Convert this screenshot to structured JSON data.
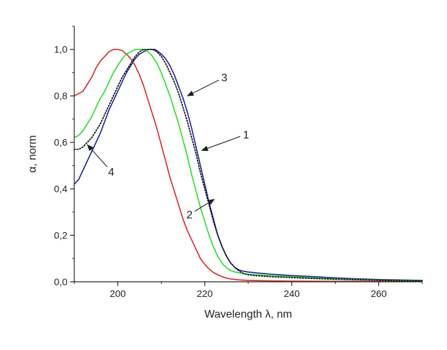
{
  "chart_data": {
    "type": "line",
    "xlabel": "Wavelength λ, nm",
    "ylabel": "α, norm",
    "xlim": [
      190,
      270
    ],
    "ylim": [
      0,
      1.1
    ],
    "x_ticks": [
      200,
      220,
      240,
      260
    ],
    "x_tick_labels": [
      "200",
      "220",
      "240",
      "260"
    ],
    "y_ticks": [
      0,
      0.2,
      0.4,
      0.6,
      0.8,
      1.0
    ],
    "y_tick_labels": [
      "0,0",
      "0,2",
      "0,4",
      "0,6",
      "0,8",
      "1,0"
    ],
    "grid": false,
    "series": [
      {
        "name": "1",
        "color": "#1a1aa6",
        "style": "solid",
        "x": [
          190,
          191,
          192,
          193,
          194,
          195,
          196,
          197,
          198,
          199,
          200,
          201,
          202,
          203,
          204,
          205,
          206,
          207,
          208,
          208.5,
          209,
          210,
          211,
          212,
          213,
          214,
          215,
          216,
          217,
          218,
          219,
          220,
          221,
          222,
          223,
          224,
          225,
          226,
          227,
          228,
          229,
          230,
          232,
          235,
          240,
          245,
          250,
          255,
          260,
          265,
          270
        ],
        "y": [
          0.42,
          0.44,
          0.48,
          0.52,
          0.56,
          0.6,
          0.64,
          0.69,
          0.74,
          0.78,
          0.82,
          0.86,
          0.9,
          0.93,
          0.96,
          0.98,
          0.99,
          1.0,
          1.0,
          1.0,
          0.995,
          0.98,
          0.96,
          0.93,
          0.89,
          0.84,
          0.79,
          0.73,
          0.66,
          0.58,
          0.5,
          0.42,
          0.34,
          0.27,
          0.2,
          0.15,
          0.11,
          0.08,
          0.06,
          0.05,
          0.045,
          0.042,
          0.038,
          0.033,
          0.027,
          0.022,
          0.017,
          0.013,
          0.01,
          0.008,
          0.006
        ]
      },
      {
        "name": "2",
        "color": "#e02020",
        "style": "solid",
        "x": [
          190,
          191,
          192,
          193,
          194,
          195,
          196,
          197,
          198,
          199,
          200,
          201,
          202,
          203,
          204,
          205,
          206,
          207,
          208,
          209,
          210,
          211,
          212,
          213,
          214,
          215,
          216,
          217,
          218,
          219,
          220,
          221,
          222,
          223,
          224,
          225,
          226,
          228,
          230,
          235,
          240,
          250,
          260,
          270
        ],
        "y": [
          0.8,
          0.81,
          0.82,
          0.85,
          0.88,
          0.92,
          0.95,
          0.97,
          0.99,
          1.0,
          1.0,
          0.995,
          0.98,
          0.96,
          0.93,
          0.89,
          0.84,
          0.78,
          0.72,
          0.66,
          0.59,
          0.52,
          0.45,
          0.39,
          0.33,
          0.27,
          0.22,
          0.18,
          0.14,
          0.1,
          0.075,
          0.055,
          0.04,
          0.03,
          0.022,
          0.016,
          0.012,
          0.008,
          0.006,
          0.004,
          0.003,
          0.002,
          0.002,
          0.002
        ]
      },
      {
        "name": "3",
        "color": "#1fe01f",
        "style": "solid",
        "x": [
          190,
          191,
          192,
          193,
          194,
          195,
          196,
          197,
          198,
          199,
          200,
          201,
          202,
          203,
          204,
          205,
          206,
          207,
          208,
          209,
          210,
          211,
          212,
          213,
          214,
          215,
          216,
          217,
          218,
          219,
          220,
          221,
          222,
          223,
          224,
          225,
          226,
          227,
          228,
          229,
          230,
          232,
          235,
          240,
          245,
          250,
          255,
          260,
          265,
          270
        ],
        "y": [
          0.62,
          0.63,
          0.65,
          0.68,
          0.71,
          0.75,
          0.79,
          0.82,
          0.86,
          0.9,
          0.93,
          0.96,
          0.98,
          0.99,
          1.0,
          1.0,
          1.0,
          0.99,
          0.97,
          0.94,
          0.9,
          0.85,
          0.8,
          0.74,
          0.68,
          0.61,
          0.54,
          0.46,
          0.39,
          0.32,
          0.26,
          0.2,
          0.15,
          0.11,
          0.08,
          0.06,
          0.048,
          0.042,
          0.038,
          0.035,
          0.033,
          0.03,
          0.027,
          0.022,
          0.017,
          0.013,
          0.01,
          0.008,
          0.006,
          0.005
        ]
      },
      {
        "name": "4",
        "color": "#111111",
        "style": "dotted",
        "x": [
          190,
          191,
          192,
          193,
          194,
          195,
          196,
          197,
          198,
          199,
          200,
          201,
          202,
          203,
          204,
          205,
          206,
          207,
          208,
          209,
          210,
          211,
          212,
          213,
          214,
          215,
          216,
          217,
          218,
          219,
          220,
          221,
          222,
          223,
          224,
          225,
          226,
          227,
          228,
          229,
          230,
          232,
          235,
          240,
          245,
          250,
          255,
          260,
          265,
          270
        ],
        "y": [
          0.57,
          0.57,
          0.58,
          0.6,
          0.62,
          0.65,
          0.68,
          0.72,
          0.76,
          0.8,
          0.84,
          0.88,
          0.91,
          0.94,
          0.97,
          0.99,
          1.0,
          1.0,
          1.0,
          0.99,
          0.97,
          0.94,
          0.9,
          0.86,
          0.81,
          0.75,
          0.69,
          0.62,
          0.55,
          0.47,
          0.4,
          0.33,
          0.26,
          0.2,
          0.15,
          0.11,
          0.08,
          0.06,
          0.045,
          0.035,
          0.03,
          0.026,
          0.022,
          0.018,
          0.014,
          0.011,
          0.009,
          0.007,
          0.005,
          0.004
        ]
      }
    ],
    "annotations": [
      {
        "text": "1",
        "series": "1",
        "text_x": 229.5,
        "text_y": 0.635,
        "arrow_x": 219.3,
        "arrow_y": 0.565
      },
      {
        "text": "2",
        "series": "2",
        "text_x": 216.5,
        "text_y": 0.29,
        "arrow_x": 222.2,
        "arrow_y": 0.355
      },
      {
        "text": "3",
        "series": "3",
        "text_x": 224.5,
        "text_y": 0.88,
        "arrow_x": 216.0,
        "arrow_y": 0.8
      },
      {
        "text": "4",
        "series": "4",
        "text_x": 198.5,
        "text_y": 0.475,
        "arrow_x": 193.0,
        "arrow_y": 0.59
      }
    ]
  }
}
